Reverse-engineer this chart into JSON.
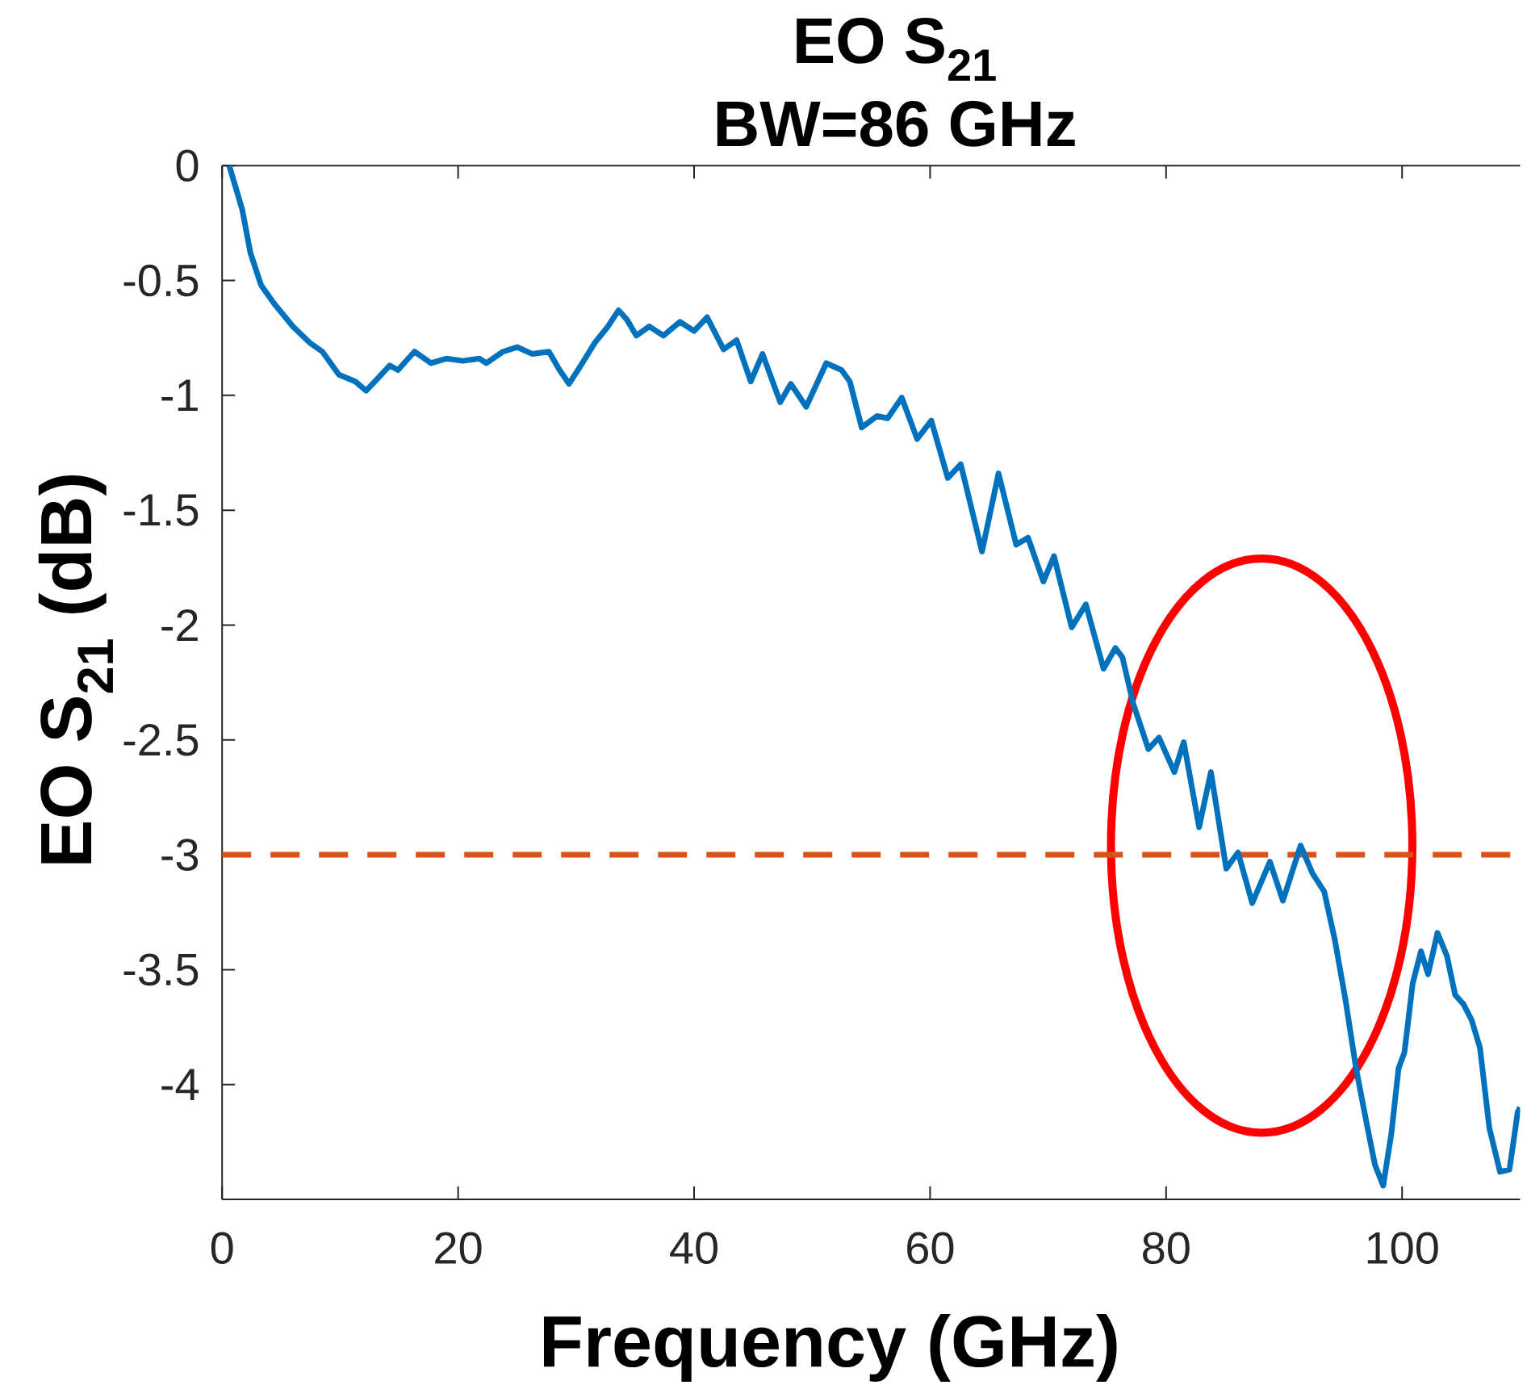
{
  "chart_data": {
    "type": "line",
    "title": "EO S$_{21}$",
    "subtitle": "BW=86 GHz",
    "xlabel": "Frequency (GHz)",
    "ylabel": "EO S$_{21}$ (dB)",
    "x": [
      0.6,
      1.7,
      2.4,
      3.3,
      4.4,
      6.0,
      7.4,
      8.5,
      9.9,
      11.3,
      12.2,
      13.3,
      14.2,
      14.9,
      16.3,
      17.7,
      19.0,
      20.4,
      21.8,
      22.4,
      23.8,
      25.0,
      26.3,
      27.7,
      28.6,
      29.4,
      30.4,
      31.6,
      32.7,
      33.6,
      34.3,
      35.1,
      36.2,
      37.4,
      38.8,
      40.0,
      41.1,
      42.5,
      43.6,
      44.8,
      45.8,
      47.3,
      48.2,
      49.5,
      51.2,
      52.5,
      53.2,
      54.2,
      55.5,
      56.4,
      57.6,
      58.9,
      60.1,
      61.5,
      62.6,
      64.4,
      65.8,
      67.3,
      68.3,
      69.6,
      70.5,
      72.0,
      73.2,
      74.7,
      75.7,
      76.3,
      77.2,
      78.5,
      79.4,
      80.7,
      81.5,
      82.8,
      83.8,
      85.1,
      86.1,
      87.3,
      88.8,
      89.9,
      91.4,
      92.4,
      93.4,
      94.3,
      95.2,
      96.1,
      97.0,
      97.7,
      98.4,
      99.1,
      99.7,
      100.2,
      100.9,
      101.6,
      102.2,
      103.0,
      103.8,
      104.5,
      105.2,
      105.9,
      106.6,
      107.4,
      108.3,
      109.1,
      109.8,
      110.0
    ],
    "series": [
      {
        "color": "#0072bd",
        "values": [
          0.0,
          -0.19,
          -0.38,
          -0.52,
          -0.6,
          -0.7,
          -0.77,
          -0.81,
          -0.91,
          -0.94,
          -0.98,
          -0.92,
          -0.87,
          -0.89,
          -0.81,
          -0.86,
          -0.84,
          -0.85,
          -0.84,
          -0.86,
          -0.81,
          -0.79,
          -0.82,
          -0.81,
          -0.89,
          -0.95,
          -0.87,
          -0.77,
          -0.7,
          -0.63,
          -0.67,
          -0.74,
          -0.7,
          -0.74,
          -0.68,
          -0.72,
          -0.66,
          -0.8,
          -0.76,
          -0.94,
          -0.82,
          -1.03,
          -0.95,
          -1.05,
          -0.86,
          -0.89,
          -0.94,
          -1.14,
          -1.09,
          -1.1,
          -1.01,
          -1.19,
          -1.11,
          -1.36,
          -1.3,
          -1.68,
          -1.34,
          -1.65,
          -1.62,
          -1.81,
          -1.7,
          -2.01,
          -1.91,
          -2.19,
          -2.1,
          -2.14,
          -2.34,
          -2.54,
          -2.49,
          -2.64,
          -2.51,
          -2.88,
          -2.64,
          -3.06,
          -2.99,
          -3.21,
          -3.03,
          -3.2,
          -2.96,
          -3.08,
          -3.16,
          -3.37,
          -3.63,
          -3.93,
          -4.17,
          -4.35,
          -4.44,
          -4.21,
          -3.93,
          -3.86,
          -3.56,
          -3.42,
          -3.52,
          -3.34,
          -3.44,
          -3.61,
          -3.65,
          -3.72,
          -3.84,
          -4.19,
          -4.38,
          -4.37,
          -4.12,
          -4.1
        ]
      }
    ],
    "xlim": [
      0,
      110
    ],
    "ylim": [
      -4.5,
      0
    ],
    "xticks": [
      0,
      20,
      40,
      60,
      80,
      100
    ],
    "yticks": [
      -4,
      -3.5,
      -3,
      -2.5,
      -2,
      -1.5,
      -1,
      -0.5,
      0
    ],
    "ref_lines": [
      {
        "axis": "y",
        "value": -3,
        "color": "#d95319",
        "line_style": "dashed"
      }
    ]
  }
}
